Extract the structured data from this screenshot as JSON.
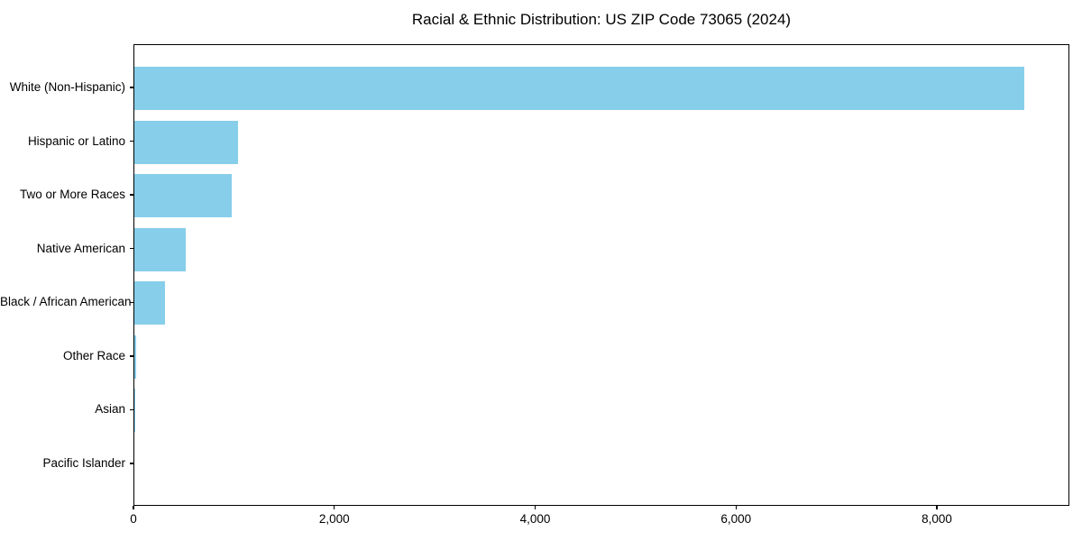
{
  "chart_data": {
    "type": "bar",
    "orientation": "horizontal",
    "title": "Racial & Ethnic Distribution: US ZIP Code 73065 (2024)",
    "categories": [
      "White (Non-Hispanic)",
      "Hispanic or Latino",
      "Two or More Races",
      "Native American",
      "Black / African American",
      "Other Race",
      "Asian",
      "Pacific Islander"
    ],
    "values": [
      8860,
      1030,
      970,
      510,
      305,
      22,
      8,
      0
    ],
    "xlabel": "",
    "ylabel": "",
    "xlim": [
      0,
      9320
    ],
    "x_ticks": [
      0,
      2000,
      4000,
      6000,
      8000
    ],
    "x_tick_labels": [
      "0",
      "2,000",
      "4,000",
      "6,000",
      "8,000"
    ],
    "bar_color": "#87CEEB",
    "background_color": "#ffffff",
    "grid": false,
    "legend_position": "none"
  }
}
